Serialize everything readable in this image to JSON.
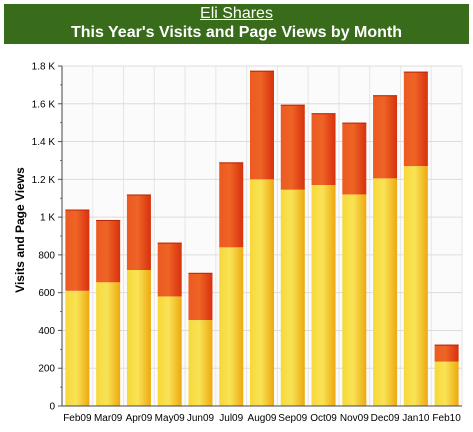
{
  "header": {
    "link_text": "Eli Shares",
    "title": "This Year's Visits and Page Views by Month"
  },
  "colors": {
    "header_bg": "#386b1a",
    "visits": "#f2c21b",
    "page_views": "#e8451a"
  },
  "chart_data": {
    "type": "bar",
    "stacked": true,
    "title": "This Year's Visits and Page Views by Month",
    "xlabel": "",
    "ylabel": "Visits and Page Views",
    "ylim": [
      0,
      1800
    ],
    "yticks": [
      0,
      200,
      400,
      600,
      800,
      1000,
      1200,
      1400,
      1600,
      1800
    ],
    "ytick_labels": [
      "0",
      "200",
      "400",
      "600",
      "800",
      "1 K",
      "1.2 K",
      "1.4 K",
      "1.6 K",
      "1.8 K"
    ],
    "grid": true,
    "categories": [
      "Feb09",
      "Mar09",
      "Apr09",
      "May09",
      "Jun09",
      "Jul09",
      "Aug09",
      "Sep09",
      "Oct09",
      "Nov09",
      "Dec09",
      "Jan10",
      "Feb10"
    ],
    "series": [
      {
        "values": [
          610,
          655,
          720,
          580,
          455,
          840,
          1200,
          1145,
          1170,
          1120,
          1205,
          1270,
          235
        ]
      },
      {
        "values": [
          430,
          330,
          400,
          285,
          250,
          450,
          575,
          450,
          380,
          380,
          440,
          500,
          90
        ]
      }
    ]
  }
}
